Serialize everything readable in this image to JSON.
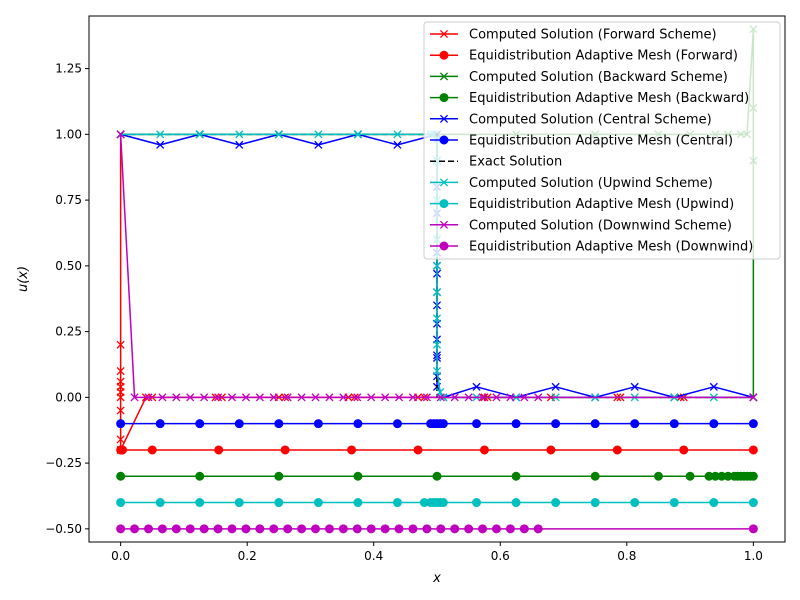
{
  "chart_data": {
    "type": "line",
    "xlabel": "x",
    "ylabel": "u(x)",
    "xlim": [
      -0.05,
      1.05
    ],
    "ylim": [
      -0.55,
      1.45
    ],
    "xticks": [
      {
        "value": 0.0,
        "label": "0.0"
      },
      {
        "value": 0.2,
        "label": "0.2"
      },
      {
        "value": 0.4,
        "label": "0.4"
      },
      {
        "value": 0.6,
        "label": "0.6"
      },
      {
        "value": 0.8,
        "label": "0.8"
      },
      {
        "value": 1.0,
        "label": "1.0"
      }
    ],
    "yticks": [
      {
        "value": -0.5,
        "label": "−0.50"
      },
      {
        "value": -0.25,
        "label": "−0.25"
      },
      {
        "value": 0.0,
        "label": "0.00"
      },
      {
        "value": 0.25,
        "label": "0.25"
      },
      {
        "value": 0.5,
        "label": "0.50"
      },
      {
        "value": 0.75,
        "label": "0.75"
      },
      {
        "value": 1.0,
        "label": "1.00"
      },
      {
        "value": 1.25,
        "label": "1.25"
      }
    ],
    "legend_position": "upper-right",
    "series": [
      {
        "name": "Computed Solution (Forward Scheme)",
        "color": "#ff0000",
        "marker": "x",
        "dash": false,
        "x": [
          0,
          0,
          0,
          0,
          0,
          0,
          0,
          0,
          0,
          0,
          0.04,
          0.05,
          0.15,
          0.16,
          0.25,
          0.26,
          0.36,
          0.37,
          0.47,
          0.48,
          0.575,
          0.58,
          0.68,
          0.785,
          0.79,
          0.885,
          0.89,
          1.0
        ],
        "y": [
          1.0,
          0.2,
          0.1,
          0.06,
          0.04,
          0.02,
          0.0,
          -0.05,
          -0.16,
          -0.2,
          0.0,
          0.0,
          0.0,
          0.0,
          0.0,
          0.0,
          0.0,
          0.0,
          0.0,
          0.0,
          0.0,
          0.0,
          0.0,
          0.0,
          0.0,
          0.0,
          0.0,
          0.0
        ]
      },
      {
        "name": "Equidistribution Adaptive Mesh (Forward)",
        "color": "#ff0000",
        "marker": "o",
        "dash": false,
        "x": [
          0,
          0.001,
          0.002,
          0.003,
          0.05,
          0.155,
          0.26,
          0.365,
          0.47,
          0.575,
          0.68,
          0.785,
          0.89,
          1.0
        ],
        "y": [
          -0.2,
          -0.2,
          -0.2,
          -0.2,
          -0.2,
          -0.2,
          -0.2,
          -0.2,
          -0.2,
          -0.2,
          -0.2,
          -0.2,
          -0.2,
          -0.2
        ]
      },
      {
        "name": "Computed Solution (Backward Scheme)",
        "color": "#008000",
        "marker": "x",
        "dash": false,
        "x": [
          0,
          0.125,
          0.25,
          0.375,
          0.5,
          0.625,
          0.75,
          0.85,
          0.9,
          0.94,
          0.96,
          0.98,
          0.99,
          1.0,
          1.0,
          1.0,
          1.0
        ],
        "y": [
          1.0,
          1.0,
          1.0,
          1.0,
          1.0,
          1.0,
          1.0,
          1.0,
          1.0,
          1.0,
          1.0,
          1.0,
          1.0,
          1.4,
          1.1,
          0.9,
          0.0
        ]
      },
      {
        "name": "Equidistribution Adaptive Mesh (Backward)",
        "color": "#008000",
        "marker": "o",
        "dash": false,
        "x": [
          0,
          0.125,
          0.25,
          0.375,
          0.5,
          0.625,
          0.75,
          0.85,
          0.9,
          0.93,
          0.94,
          0.95,
          0.96,
          0.97,
          0.975,
          0.98,
          0.985,
          0.99,
          0.995,
          1.0
        ],
        "y": [
          -0.3,
          -0.3,
          -0.3,
          -0.3,
          -0.3,
          -0.3,
          -0.3,
          -0.3,
          -0.3,
          -0.3,
          -0.3,
          -0.3,
          -0.3,
          -0.3,
          -0.3,
          -0.3,
          -0.3,
          -0.3,
          -0.3,
          -0.3
        ]
      },
      {
        "name": "Computed Solution (Central Scheme)",
        "color": "#0000ff",
        "marker": "x",
        "dash": false,
        "x": [
          0,
          0.0625,
          0.125,
          0.1875,
          0.25,
          0.3125,
          0.375,
          0.4375,
          0.5,
          0.5,
          0.5,
          0.5,
          0.5,
          0.5,
          0.5,
          0.5,
          0.5,
          0.5,
          0.5,
          0.5,
          0.5,
          0.5,
          0.5,
          0.5,
          0.51,
          0.5625,
          0.625,
          0.6875,
          0.75,
          0.8125,
          0.875,
          0.9375,
          1.0
        ],
        "y": [
          1.0,
          0.96,
          1.0,
          0.96,
          1.0,
          0.96,
          1.0,
          0.96,
          1.0,
          0.9,
          0.8,
          0.7,
          0.6,
          0.55,
          0.5,
          0.47,
          0.4,
          0.35,
          0.28,
          0.22,
          0.16,
          0.15,
          0.08,
          0.04,
          0.0,
          0.04,
          0.0,
          0.04,
          0.0,
          0.04,
          0.0,
          0.04,
          0.0
        ]
      },
      {
        "name": "Equidistribution Adaptive Mesh (Central)",
        "color": "#0000ff",
        "marker": "o",
        "dash": false,
        "x": [
          0,
          0.0625,
          0.125,
          0.1875,
          0.25,
          0.3125,
          0.375,
          0.4375,
          0.49,
          0.495,
          0.5,
          0.505,
          0.51,
          0.5625,
          0.625,
          0.6875,
          0.75,
          0.8125,
          0.875,
          0.9375,
          1.0
        ],
        "y": [
          -0.1,
          -0.1,
          -0.1,
          -0.1,
          -0.1,
          -0.1,
          -0.1,
          -0.1,
          -0.1,
          -0.1,
          -0.1,
          -0.1,
          -0.1,
          -0.1,
          -0.1,
          -0.1,
          -0.1,
          -0.1,
          -0.1,
          -0.1,
          -0.1
        ]
      },
      {
        "name": "Exact Solution",
        "color": "#000000",
        "marker": "none",
        "dash": true,
        "x": [
          0,
          0.5,
          0.5,
          1.0
        ],
        "y": [
          1.0,
          1.0,
          0.0,
          0.0
        ]
      },
      {
        "name": "Computed Solution (Upwind Scheme)",
        "color": "#00bfbf",
        "marker": "x",
        "dash": false,
        "x": [
          0,
          0.0625,
          0.125,
          0.1875,
          0.25,
          0.3125,
          0.375,
          0.4375,
          0.49,
          0.495,
          0.5,
          0.5,
          0.5,
          0.5,
          0.5,
          0.5,
          0.5,
          0.5,
          0.5,
          0.505,
          0.51,
          0.5625,
          0.625,
          0.6875,
          0.75,
          0.8125,
          0.875,
          0.9375,
          1.0
        ],
        "y": [
          1.0,
          1.0,
          1.0,
          1.0,
          1.0,
          1.0,
          1.0,
          1.0,
          1.0,
          1.0,
          0.98,
          0.9,
          0.75,
          0.6,
          0.5,
          0.4,
          0.3,
          0.2,
          0.1,
          0.02,
          0.0,
          0.0,
          0.0,
          0.0,
          0.0,
          0.0,
          0.0,
          0.0,
          0.0
        ]
      },
      {
        "name": "Equidistribution Adaptive Mesh (Upwind)",
        "color": "#00bfbf",
        "marker": "o",
        "dash": false,
        "x": [
          0,
          0.0625,
          0.125,
          0.1875,
          0.25,
          0.3125,
          0.375,
          0.4375,
          0.48,
          0.49,
          0.495,
          0.5,
          0.505,
          0.51,
          0.5625,
          0.625,
          0.6875,
          0.75,
          0.8125,
          0.875,
          0.9375,
          1.0
        ],
        "y": [
          -0.4,
          -0.4,
          -0.4,
          -0.4,
          -0.4,
          -0.4,
          -0.4,
          -0.4,
          -0.4,
          -0.4,
          -0.4,
          -0.4,
          -0.4,
          -0.4,
          -0.4,
          -0.4,
          -0.4,
          -0.4,
          -0.4,
          -0.4,
          -0.4,
          -0.4
        ]
      },
      {
        "name": "Computed Solution (Downwind Scheme)",
        "color": "#bf00bf",
        "marker": "x",
        "dash": false,
        "x": [
          0,
          0.022,
          0.044,
          0.066,
          0.088,
          0.11,
          0.132,
          0.154,
          0.176,
          0.198,
          0.22,
          0.242,
          0.264,
          0.286,
          0.308,
          0.33,
          0.352,
          0.374,
          0.396,
          0.418,
          0.44,
          0.462,
          0.484,
          0.506,
          0.528,
          0.55,
          0.572,
          0.594,
          0.616,
          0.638,
          0.66,
          1.0
        ],
        "y": [
          1.0,
          0.0,
          0.0,
          0.0,
          0.0,
          0.0,
          0.0,
          0.0,
          0.0,
          0.0,
          0.0,
          0.0,
          0.0,
          0.0,
          0.0,
          0.0,
          0.0,
          0.0,
          0.0,
          0.0,
          0.0,
          0.0,
          0.0,
          0.0,
          0.0,
          0.0,
          0.0,
          0.0,
          0.0,
          0.0,
          0.0,
          0.0
        ]
      },
      {
        "name": "Equidistribution Adaptive Mesh (Downwind)",
        "color": "#bf00bf",
        "marker": "o",
        "dash": false,
        "x": [
          0,
          0.022,
          0.044,
          0.066,
          0.088,
          0.11,
          0.132,
          0.154,
          0.176,
          0.198,
          0.22,
          0.242,
          0.264,
          0.286,
          0.308,
          0.33,
          0.352,
          0.374,
          0.396,
          0.418,
          0.44,
          0.462,
          0.484,
          0.506,
          0.528,
          0.55,
          0.572,
          0.594,
          0.616,
          0.638,
          0.66,
          1.0
        ],
        "y": [
          -0.5,
          -0.5,
          -0.5,
          -0.5,
          -0.5,
          -0.5,
          -0.5,
          -0.5,
          -0.5,
          -0.5,
          -0.5,
          -0.5,
          -0.5,
          -0.5,
          -0.5,
          -0.5,
          -0.5,
          -0.5,
          -0.5,
          -0.5,
          -0.5,
          -0.5,
          -0.5,
          -0.5,
          -0.5,
          -0.5,
          -0.5,
          -0.5,
          -0.5,
          -0.5,
          -0.5,
          -0.5
        ]
      }
    ]
  }
}
